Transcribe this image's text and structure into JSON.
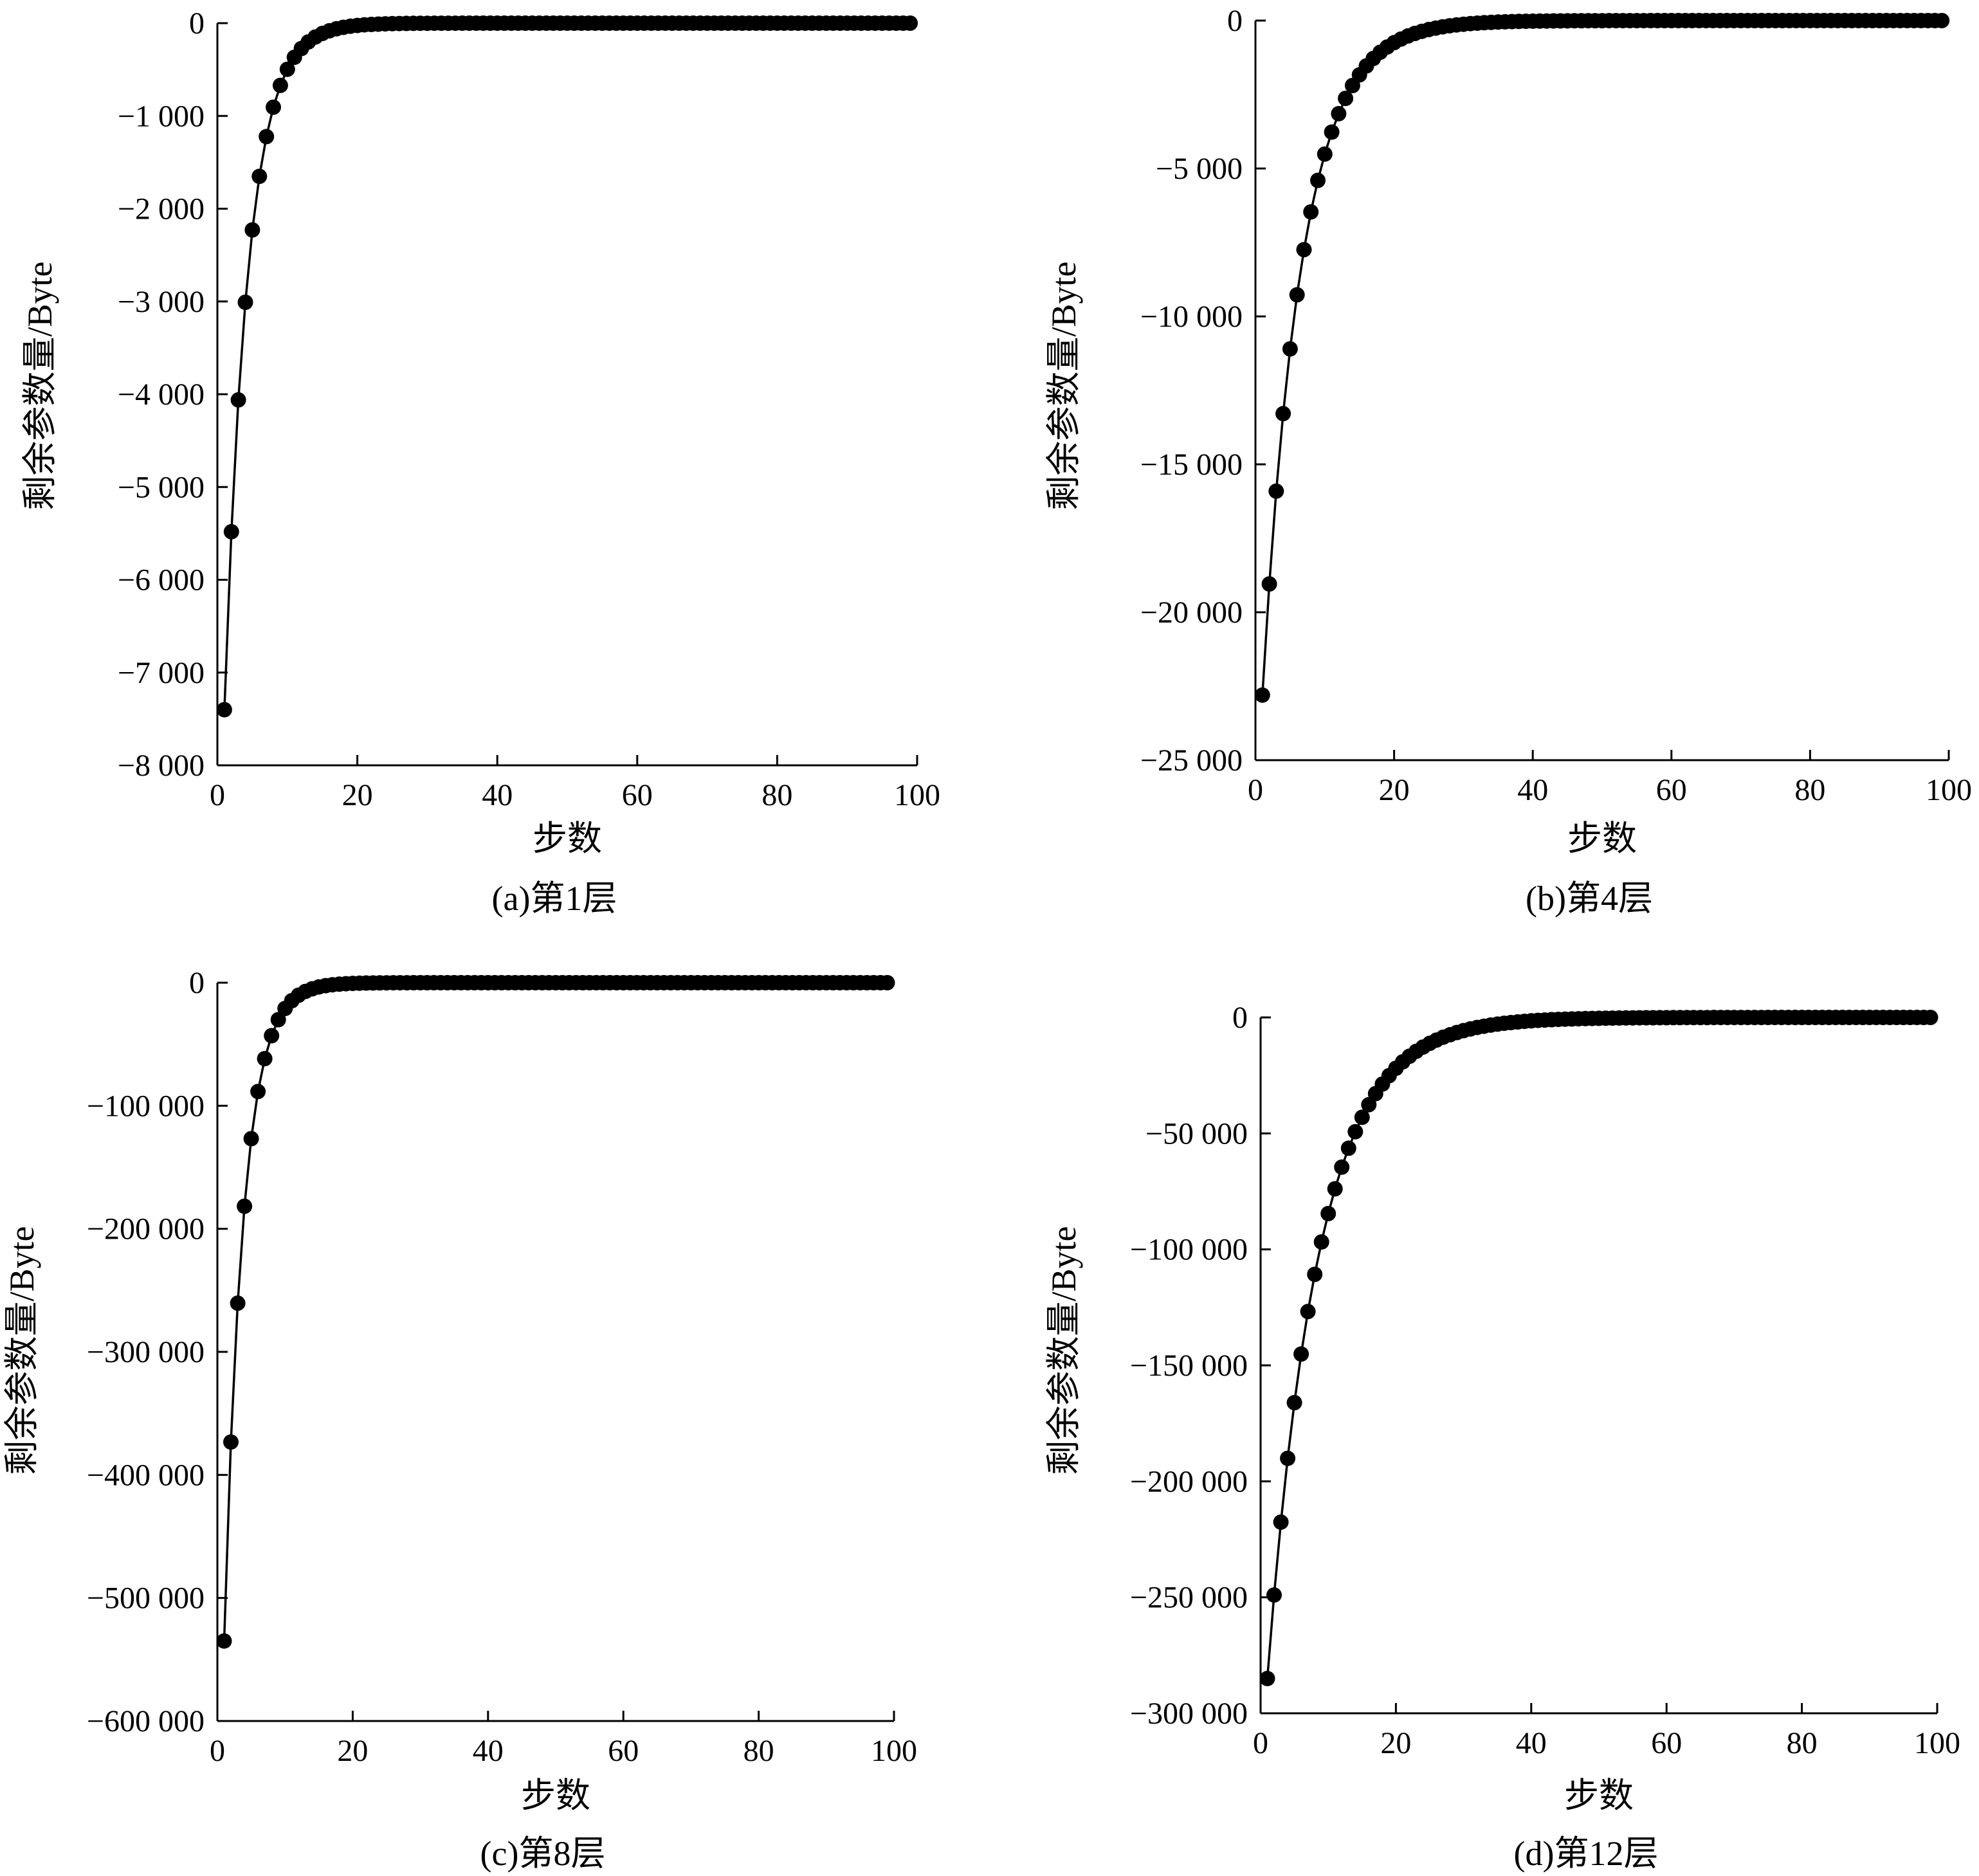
{
  "chart_data": [
    {
      "type": "line",
      "caption": "(a)第1层",
      "xlabel": "步数",
      "ylabel": "剩余参数量/Byte",
      "xlim": [
        0,
        100
      ],
      "ylim": [
        -8000,
        0
      ],
      "x_ticks": [
        0,
        20,
        40,
        60,
        80,
        100
      ],
      "x_tick_labels": [
        "0",
        "20",
        "40",
        "60",
        "80",
        "100"
      ],
      "y_ticks": [
        0,
        -1000,
        -2000,
        -3000,
        -4000,
        -5000,
        -6000,
        -7000,
        -8000
      ],
      "y_tick_labels": [
        "0",
        "−1 000",
        "−2 000",
        "−3 000",
        "−4 000",
        "−5 000",
        "−6 000",
        "−7 000",
        "−8 000"
      ],
      "marker": "circle",
      "x_range": [
        1,
        99
      ],
      "decay_start": -7400,
      "decay_rate": 0.3
    },
    {
      "type": "line",
      "caption": "(b)第4层",
      "xlabel": "步数",
      "ylabel": "剩余参数量/Byte",
      "xlim": [
        0,
        100
      ],
      "ylim": [
        -25000,
        0
      ],
      "x_ticks": [
        0,
        20,
        40,
        60,
        80,
        100
      ],
      "x_tick_labels": [
        "0",
        "20",
        "40",
        "60",
        "80",
        "100"
      ],
      "y_ticks": [
        0,
        -5000,
        -10000,
        -15000,
        -20000,
        -25000
      ],
      "y_tick_labels": [
        "0",
        "−5 000",
        "−10 000",
        "−15 000",
        "−20 000",
        "−25 000"
      ],
      "marker": "circle",
      "x_range": [
        1,
        99
      ],
      "decay_start": -22800,
      "decay_rate": 0.18
    },
    {
      "type": "line",
      "caption": "(c)第8层",
      "xlabel": "步数",
      "ylabel": "剩余参数量/Byte",
      "xlim": [
        0,
        100
      ],
      "ylim": [
        -600000,
        0
      ],
      "x_ticks": [
        0,
        20,
        40,
        60,
        80,
        100
      ],
      "x_tick_labels": [
        "0",
        "20",
        "40",
        "60",
        "80",
        "100"
      ],
      "y_ticks": [
        0,
        -100000,
        -200000,
        -300000,
        -400000,
        -500000,
        -600000
      ],
      "y_tick_labels": [
        "0",
        "−100 000",
        "−200 000",
        "−300 000",
        "−400 000",
        "−500 000",
        "−600 000"
      ],
      "marker": "circle",
      "x_range": [
        1,
        99
      ],
      "decay_start": -535000,
      "decay_rate": 0.36
    },
    {
      "type": "line",
      "caption": "(d)第12层",
      "xlabel": "步数",
      "ylabel": "剩余参数量/Byte",
      "xlim": [
        0,
        100
      ],
      "ylim": [
        -300000,
        0
      ],
      "x_ticks": [
        0,
        20,
        40,
        60,
        80,
        100
      ],
      "x_tick_labels": [
        "0",
        "20",
        "40",
        "60",
        "80",
        "100"
      ],
      "y_ticks": [
        0,
        -50000,
        -100000,
        -150000,
        -200000,
        -250000,
        -300000
      ],
      "y_tick_labels": [
        "0",
        "−50 000",
        "−100 000",
        "−150 000",
        "−200 000",
        "−250 000",
        "−300 000"
      ],
      "marker": "circle",
      "x_range": [
        1,
        99
      ],
      "decay_start": -285000,
      "decay_rate": 0.135
    }
  ]
}
